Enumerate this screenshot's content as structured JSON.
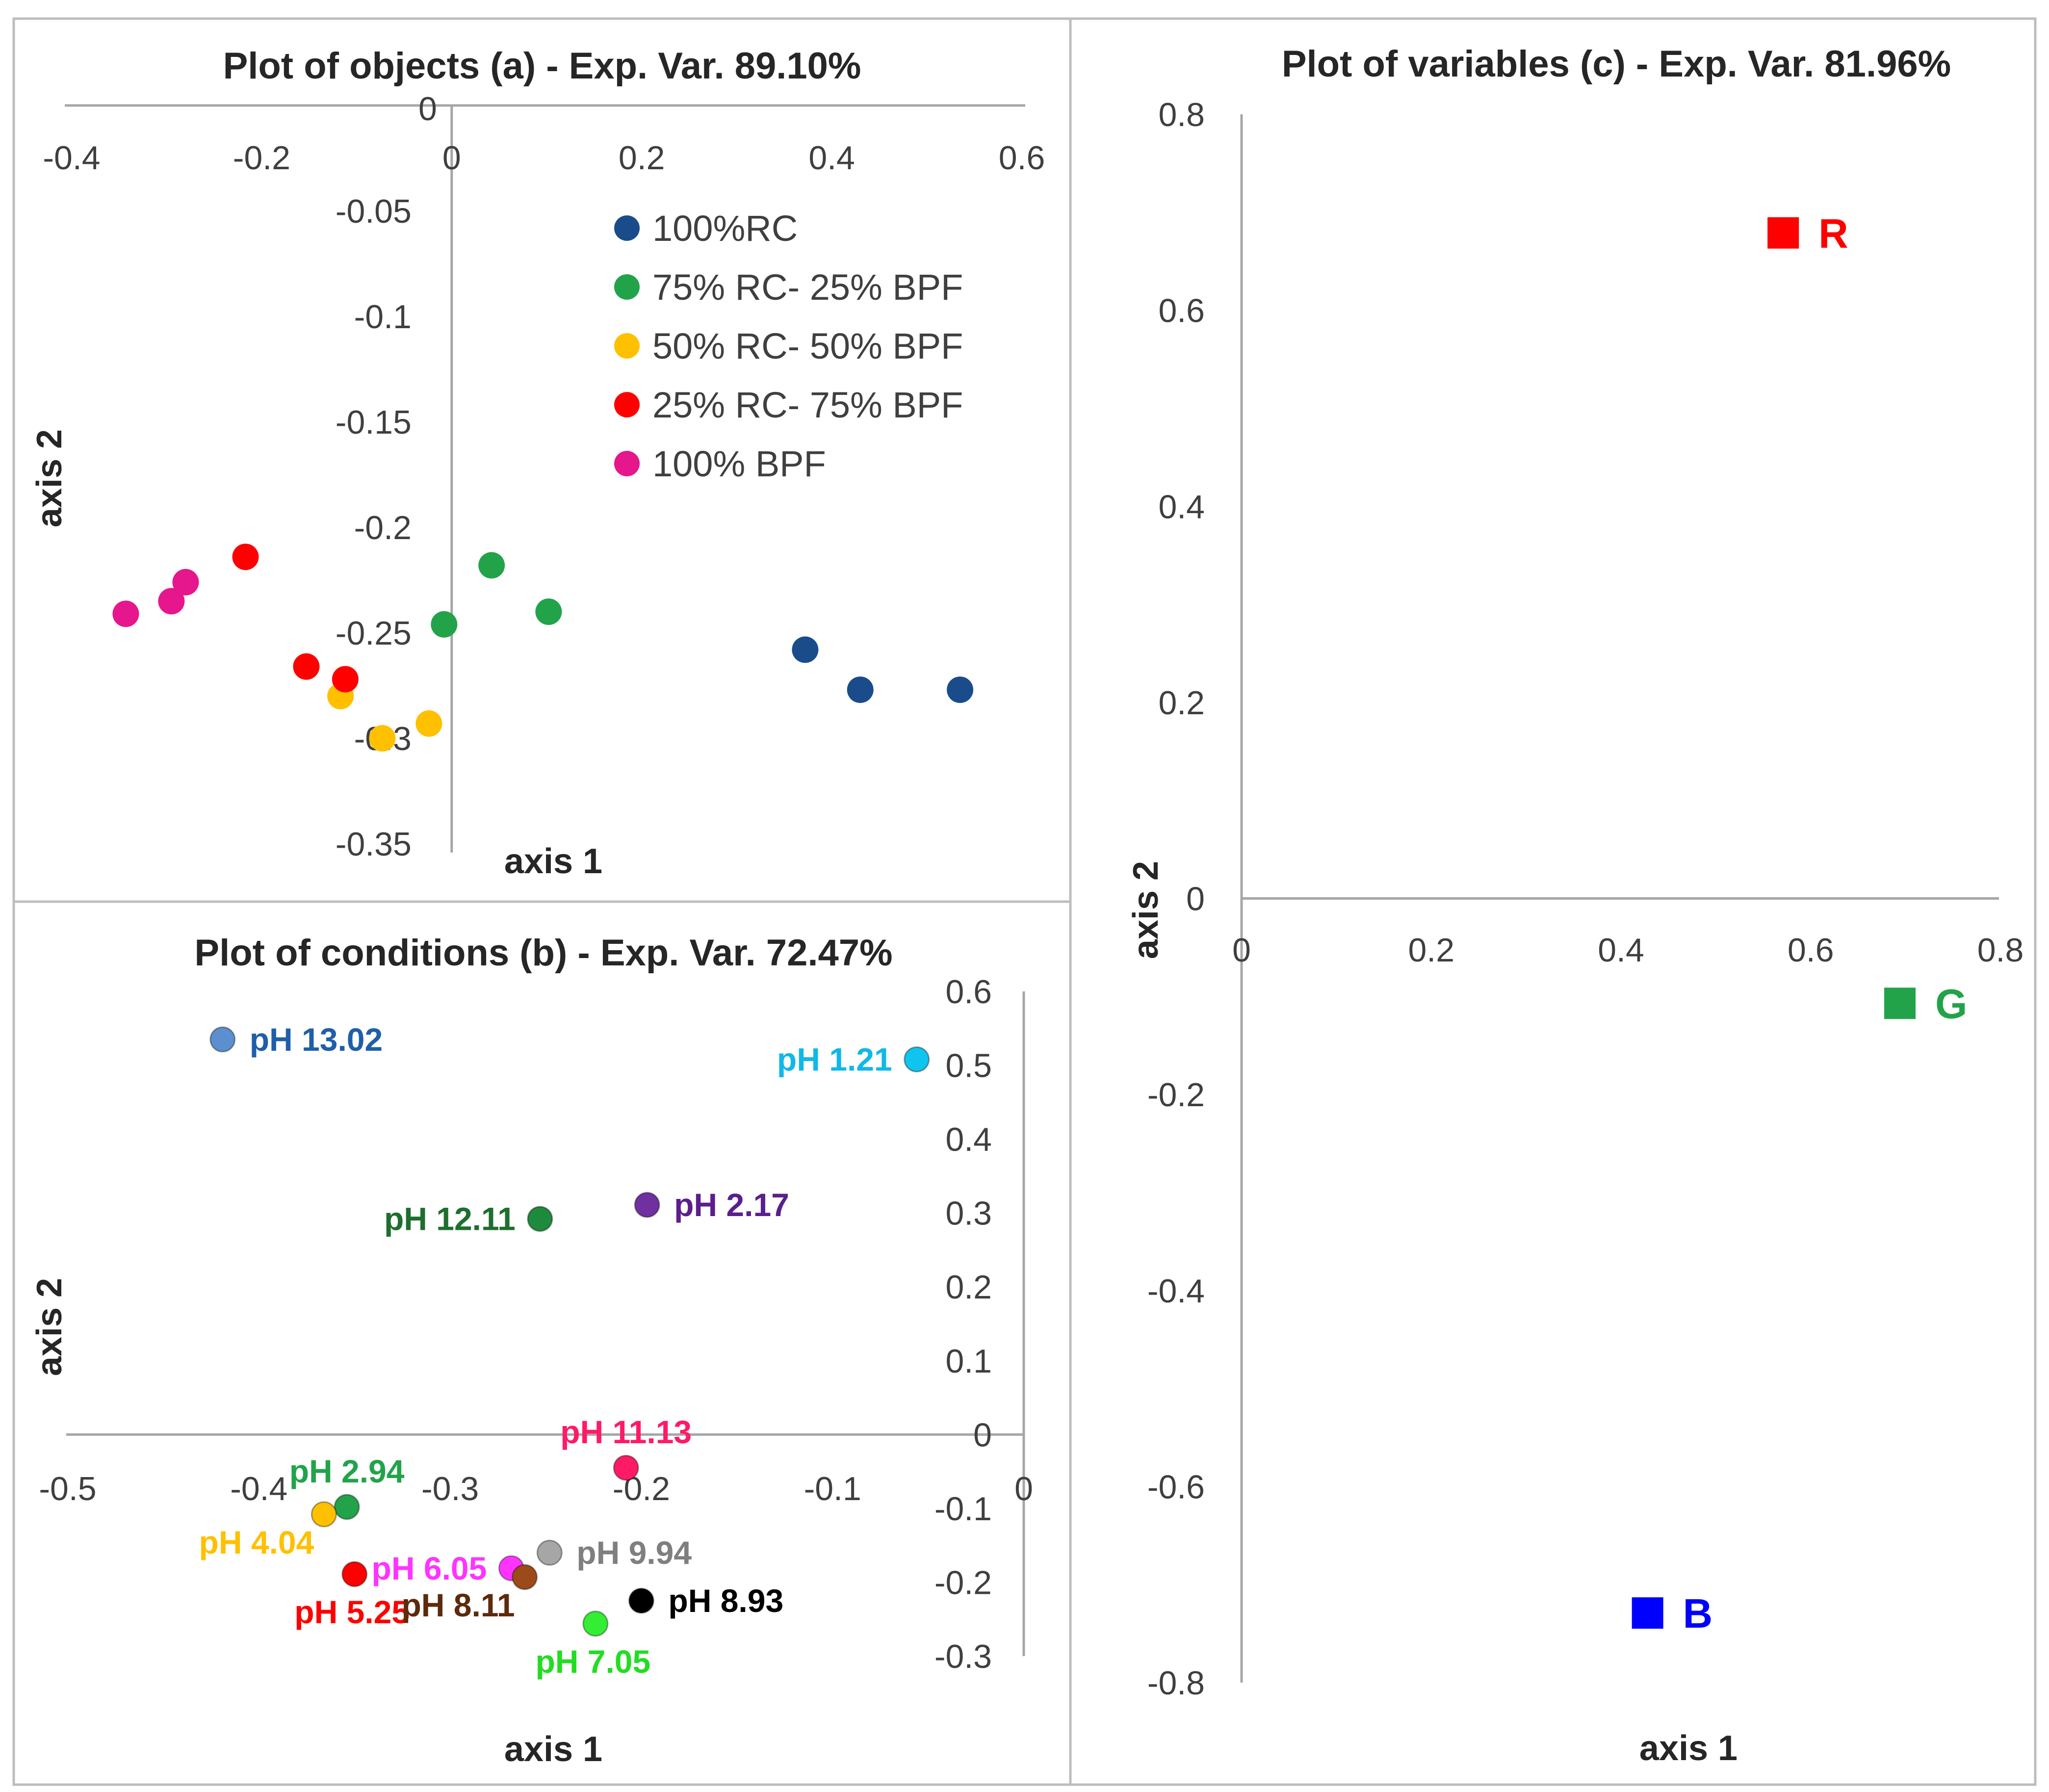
{
  "chart_data": [
    {
      "id": "a",
      "type": "scatter",
      "title": "Plot of objects (a) - Exp. Var. 89.10%",
      "xlabel": "axis 1",
      "ylabel": "axis 2",
      "xlim": [
        -0.4,
        0.6
      ],
      "ylim": [
        -0.35,
        0
      ],
      "xticks": [
        "-0.4",
        "-0.2",
        "0",
        "0.2",
        "0.4",
        "0.6"
      ],
      "yticks": [
        "0",
        "-0.05",
        "-0.1",
        "-0.15",
        "-0.2",
        "-0.25",
        "-0.3",
        "-0.35"
      ],
      "legend_position": "top-right",
      "series": [
        {
          "name": "100%RC",
          "color": "#1a4c8c",
          "points": [
            [
              0.372,
              -0.258
            ],
            [
              0.43,
              -0.277
            ],
            [
              0.535,
              -0.277
            ]
          ]
        },
        {
          "name": "75% RC- 25% BPF",
          "color": "#22a34a",
          "points": [
            [
              0.042,
              -0.218
            ],
            [
              0.102,
              -0.24
            ],
            [
              -0.008,
              -0.246
            ]
          ]
        },
        {
          "name": "50% RC- 50% BPF",
          "color": "#ffc000",
          "points": [
            [
              -0.117,
              -0.28
            ],
            [
              -0.073,
              -0.3
            ],
            [
              -0.024,
              -0.293
            ]
          ]
        },
        {
          "name": "25% RC- 75% BPF",
          "color": "#ff0000",
          "points": [
            [
              -0.217,
              -0.214
            ],
            [
              -0.153,
              -0.266
            ],
            [
              -0.112,
              -0.272
            ]
          ]
        },
        {
          "name": "100% BPF",
          "color": "#e6168c",
          "points": [
            [
              -0.343,
              -0.241
            ],
            [
              -0.295,
              -0.235
            ],
            [
              -0.28,
              -0.226
            ]
          ]
        }
      ]
    },
    {
      "id": "b",
      "type": "scatter",
      "title": "Plot of conditions (b) - Exp. Var. 72.47%",
      "xlabel": "axis 1",
      "ylabel": "axis 2",
      "xlim": [
        -0.5,
        0
      ],
      "ylim": [
        -0.3,
        0.6
      ],
      "xticks": [
        "-0.5",
        "-0.4",
        "-0.3",
        "-0.2",
        "-0.1",
        "0"
      ],
      "yticks": [
        "0.6",
        "0.5",
        "0.4",
        "0.3",
        "0.2",
        "0.1",
        "0",
        "-0.1",
        "-0.2",
        "-0.3"
      ],
      "points": [
        {
          "label": "pH 13.02",
          "x": -0.419,
          "y": 0.535,
          "color": "#5b8fd0",
          "label_color": "#1f5fa8",
          "label_side": "right"
        },
        {
          "label": "pH 1.21",
          "x": -0.056,
          "y": 0.508,
          "color": "#10c4f0",
          "label_color": "#10b8e8",
          "label_side": "left"
        },
        {
          "label": "pH 12.11",
          "x": -0.253,
          "y": 0.292,
          "color": "#1e8a3c",
          "label_color": "#1e6e2e",
          "label_side": "left"
        },
        {
          "label": "pH 2.17",
          "x": -0.197,
          "y": 0.311,
          "color": "#7030a0",
          "label_color": "#5a1f8c",
          "label_side": "right"
        },
        {
          "label": "pH 11.13",
          "x": -0.208,
          "y": -0.045,
          "color": "#ff1a66",
          "label_color": "#ff1a66",
          "label_side": "above"
        },
        {
          "label": "pH 2.94",
          "x": -0.354,
          "y": -0.098,
          "color": "#22a34a",
          "label_color": "#22a34a",
          "label_side": "above"
        },
        {
          "label": "pH 4.04",
          "x": -0.366,
          "y": -0.108,
          "color": "#ffc000",
          "label_color": "#ffc000",
          "label_side": "below-left"
        },
        {
          "label": "pH 5.25",
          "x": -0.35,
          "y": -0.189,
          "color": "#ff0000",
          "label_color": "#ff0000",
          "label_side": "below"
        },
        {
          "label": "pH 6.05",
          "x": -0.268,
          "y": -0.181,
          "color": "#ff33ff",
          "label_color": "#ff33ff",
          "label_side": "left"
        },
        {
          "label": "pH 9.94",
          "x": -0.248,
          "y": -0.16,
          "color": "#a6a6a6",
          "label_color": "#7f7f7f",
          "label_side": "right"
        },
        {
          "label": "pH 8.11",
          "x": -0.261,
          "y": -0.193,
          "color": "#9c4a1a",
          "label_color": "#5c2a0c",
          "label_side": "below-left"
        },
        {
          "label": "pH 8.93",
          "x": -0.2,
          "y": -0.225,
          "color": "#000000",
          "label_color": "#000000",
          "label_side": "right"
        },
        {
          "label": "pH 7.05",
          "x": -0.224,
          "y": -0.256,
          "color": "#33ee33",
          "label_color": "#22dd22",
          "label_side": "below"
        }
      ]
    },
    {
      "id": "c",
      "type": "scatter",
      "title": "Plot of variables (c) - Exp. Var. 81.96%",
      "xlabel": "axis 1",
      "ylabel": "axis 2",
      "xlim": [
        0,
        0.8
      ],
      "ylim": [
        -0.8,
        0.8
      ],
      "xticks": [
        "0",
        "0.2",
        "0.4",
        "0.6",
        "0.8"
      ],
      "yticks": [
        "0.8",
        "0.6",
        "0.4",
        "0.2",
        "0",
        "-0.2",
        "-0.4",
        "-0.6",
        "-0.8"
      ],
      "points": [
        {
          "label": "R",
          "x": 0.571,
          "y": 0.679,
          "color": "#ff0000"
        },
        {
          "label": "G",
          "x": 0.694,
          "y": -0.107,
          "color": "#22a34a"
        },
        {
          "label": "B",
          "x": 0.428,
          "y": -0.729,
          "color": "#0000ff"
        }
      ]
    }
  ]
}
